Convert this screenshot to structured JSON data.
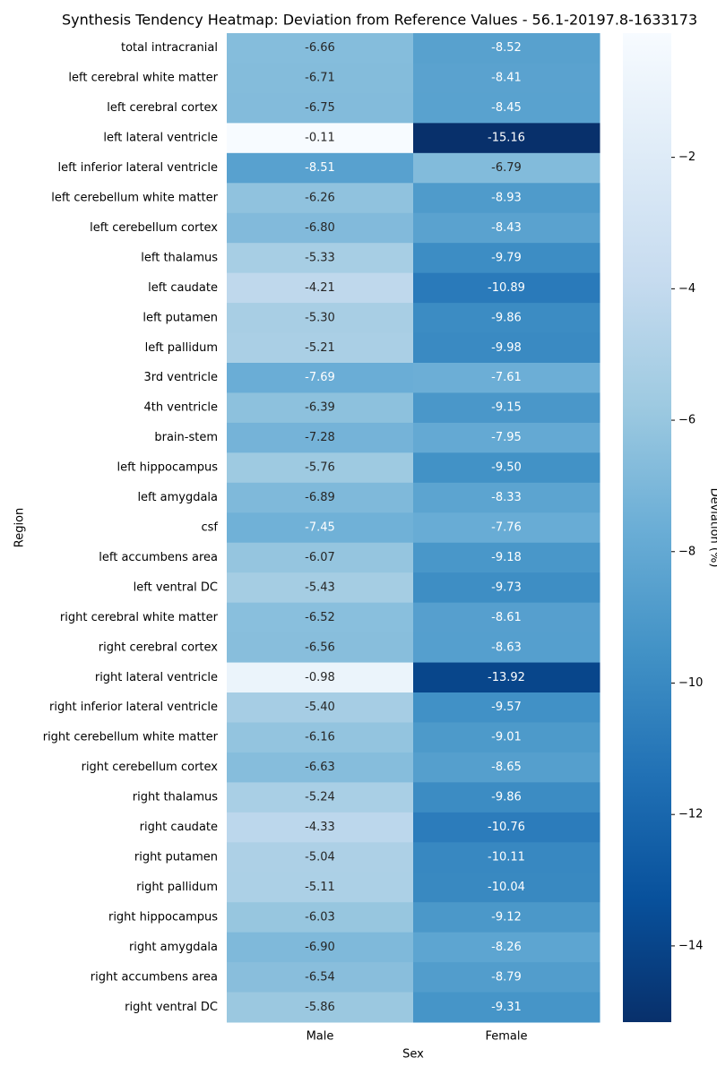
{
  "chart_data": {
    "type": "heatmap",
    "title": "Synthesis Tendency Heatmap: Deviation from Reference Values - 56.1-20197.8-1633173",
    "xlabel": "Sex",
    "ylabel": "Region",
    "colorbar_label": "Deviation (%)",
    "categories": [
      "total intracranial",
      "left cerebral white matter",
      "left cerebral cortex",
      "left lateral ventricle",
      "left inferior lateral ventricle",
      "left cerebellum white matter",
      "left cerebellum cortex",
      "left thalamus",
      "left caudate",
      "left putamen",
      "left pallidum",
      "3rd ventricle",
      "4th ventricle",
      "brain-stem",
      "left hippocampus",
      "left amygdala",
      "csf",
      "left accumbens area",
      "left ventral DC",
      "right cerebral white matter",
      "right cerebral cortex",
      "right lateral ventricle",
      "right inferior lateral ventricle",
      "right cerebellum white matter",
      "right cerebellum cortex",
      "right thalamus",
      "right caudate",
      "right putamen",
      "right pallidum",
      "right hippocampus",
      "right amygdala",
      "right accumbens area",
      "right ventral DC"
    ],
    "series": [
      {
        "name": "Male",
        "values": [
          -6.66,
          -6.71,
          -6.75,
          -0.11,
          -8.51,
          -6.26,
          -6.8,
          -5.33,
          -4.21,
          -5.3,
          -5.21,
          -7.69,
          -6.39,
          -7.28,
          -5.76,
          -6.89,
          -7.45,
          -6.07,
          -5.43,
          -6.52,
          -6.56,
          -0.98,
          -5.4,
          -6.16,
          -6.63,
          -5.24,
          -4.33,
          -5.04,
          -5.11,
          -6.03,
          -6.9,
          -6.54,
          -5.86
        ],
        "value_labels": [
          "-6.66",
          "-6.71",
          "-6.75",
          "-0.11",
          "-8.51",
          "-6.26",
          "-6.80",
          "-5.33",
          "-4.21",
          "-5.30",
          "-5.21",
          "-7.69",
          "-6.39",
          "-7.28",
          "-5.76",
          "-6.89",
          "-7.45",
          "-6.07",
          "-5.43",
          "-6.52",
          "-6.56",
          "-0.98",
          "-5.40",
          "-6.16",
          "-6.63",
          "-5.24",
          "-4.33",
          "-5.04",
          "-5.11",
          "-6.03",
          "-6.90",
          "-6.54",
          "-5.86"
        ]
      },
      {
        "name": "Female",
        "values": [
          -8.52,
          -8.41,
          -8.45,
          -15.16,
          -6.79,
          -8.93,
          -8.43,
          -9.79,
          -10.89,
          -9.86,
          -9.98,
          -7.61,
          -9.15,
          -7.95,
          -9.5,
          -8.33,
          -7.76,
          -9.18,
          -9.73,
          -8.61,
          -8.63,
          -13.92,
          -9.57,
          -9.01,
          -8.65,
          -9.86,
          -10.76,
          -10.11,
          -10.04,
          -9.12,
          -8.26,
          -8.79,
          -9.31
        ],
        "value_labels": [
          "-8.52",
          "-8.41",
          "-8.45",
          "-15.16",
          "-6.79",
          "-8.93",
          "-8.43",
          "-9.79",
          "-10.89",
          "-9.86",
          "-9.98",
          "-7.61",
          "-9.15",
          "-7.95",
          "-9.50",
          "-8.33",
          "-7.76",
          "-9.18",
          "-9.73",
          "-8.61",
          "-8.63",
          "-13.92",
          "-9.57",
          "-9.01",
          "-8.65",
          "-9.86",
          "-10.76",
          "-10.11",
          "-10.04",
          "-9.12",
          "-8.26",
          "-8.79",
          "-9.31"
        ]
      }
    ],
    "colorbar_lim": [
      -15.16,
      -0.11
    ],
    "colorbar_ticks": [
      {
        "value": -2,
        "label": "−2"
      },
      {
        "value": -4,
        "label": "−4"
      },
      {
        "value": -6,
        "label": "−6"
      },
      {
        "value": -8,
        "label": "−8"
      },
      {
        "value": -10,
        "label": "−10"
      },
      {
        "value": -12,
        "label": "−12"
      },
      {
        "value": -14,
        "label": "−14"
      }
    ],
    "colormap": [
      "#08306b",
      "#08519c",
      "#2171b5",
      "#4292c6",
      "#6baed6",
      "#9ecae1",
      "#c6dbef",
      "#deebf7",
      "#f7fbff"
    ]
  }
}
